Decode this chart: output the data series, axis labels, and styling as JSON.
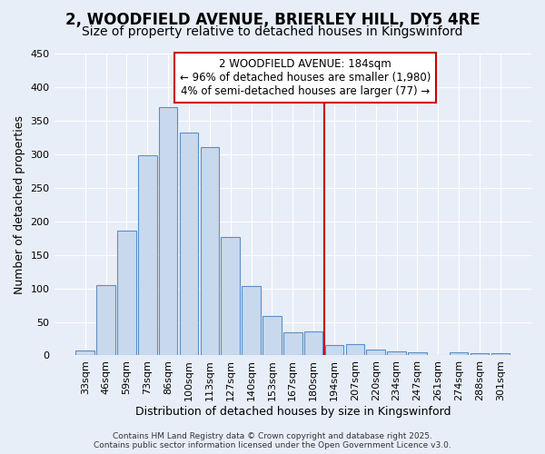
{
  "title": "2, WOODFIELD AVENUE, BRIERLEY HILL, DY5 4RE",
  "subtitle": "Size of property relative to detached houses in Kingswinford",
  "xlabel": "Distribution of detached houses by size in Kingswinford",
  "ylabel": "Number of detached properties",
  "bar_labels": [
    "33sqm",
    "46sqm",
    "59sqm",
    "73sqm",
    "86sqm",
    "100sqm",
    "113sqm",
    "127sqm",
    "140sqm",
    "153sqm",
    "167sqm",
    "180sqm",
    "194sqm",
    "207sqm",
    "220sqm",
    "234sqm",
    "247sqm",
    "261sqm",
    "274sqm",
    "288sqm",
    "301sqm"
  ],
  "bar_heights": [
    8,
    105,
    186,
    298,
    370,
    332,
    310,
    177,
    103,
    59,
    35,
    36,
    15,
    17,
    9,
    6,
    5,
    0,
    5,
    4,
    4
  ],
  "bar_color": "#c8d9ed",
  "bar_edge_color": "#5b8fc5",
  "marker_index": 11,
  "marker_color": "#cc0000",
  "annotation_line1": "2 WOODFIELD AVENUE: 184sqm",
  "annotation_line2": "← 96% of detached houses are smaller (1,980)",
  "annotation_line3": "4% of semi-detached houses are larger (77) →",
  "annotation_box_color": "#ffffff",
  "annotation_border_color": "#cc0000",
  "ylim": [
    0,
    450
  ],
  "yticks": [
    0,
    50,
    100,
    150,
    200,
    250,
    300,
    350,
    400,
    450
  ],
  "background_color": "#e8eef8",
  "grid_color": "#ffffff",
  "footer_line1": "Contains HM Land Registry data © Crown copyright and database right 2025.",
  "footer_line2": "Contains public sector information licensed under the Open Government Licence v3.0.",
  "title_fontsize": 12,
  "subtitle_fontsize": 10,
  "axis_label_fontsize": 9,
  "tick_fontsize": 8,
  "annotation_fontsize": 8.5,
  "footer_fontsize": 6.5
}
